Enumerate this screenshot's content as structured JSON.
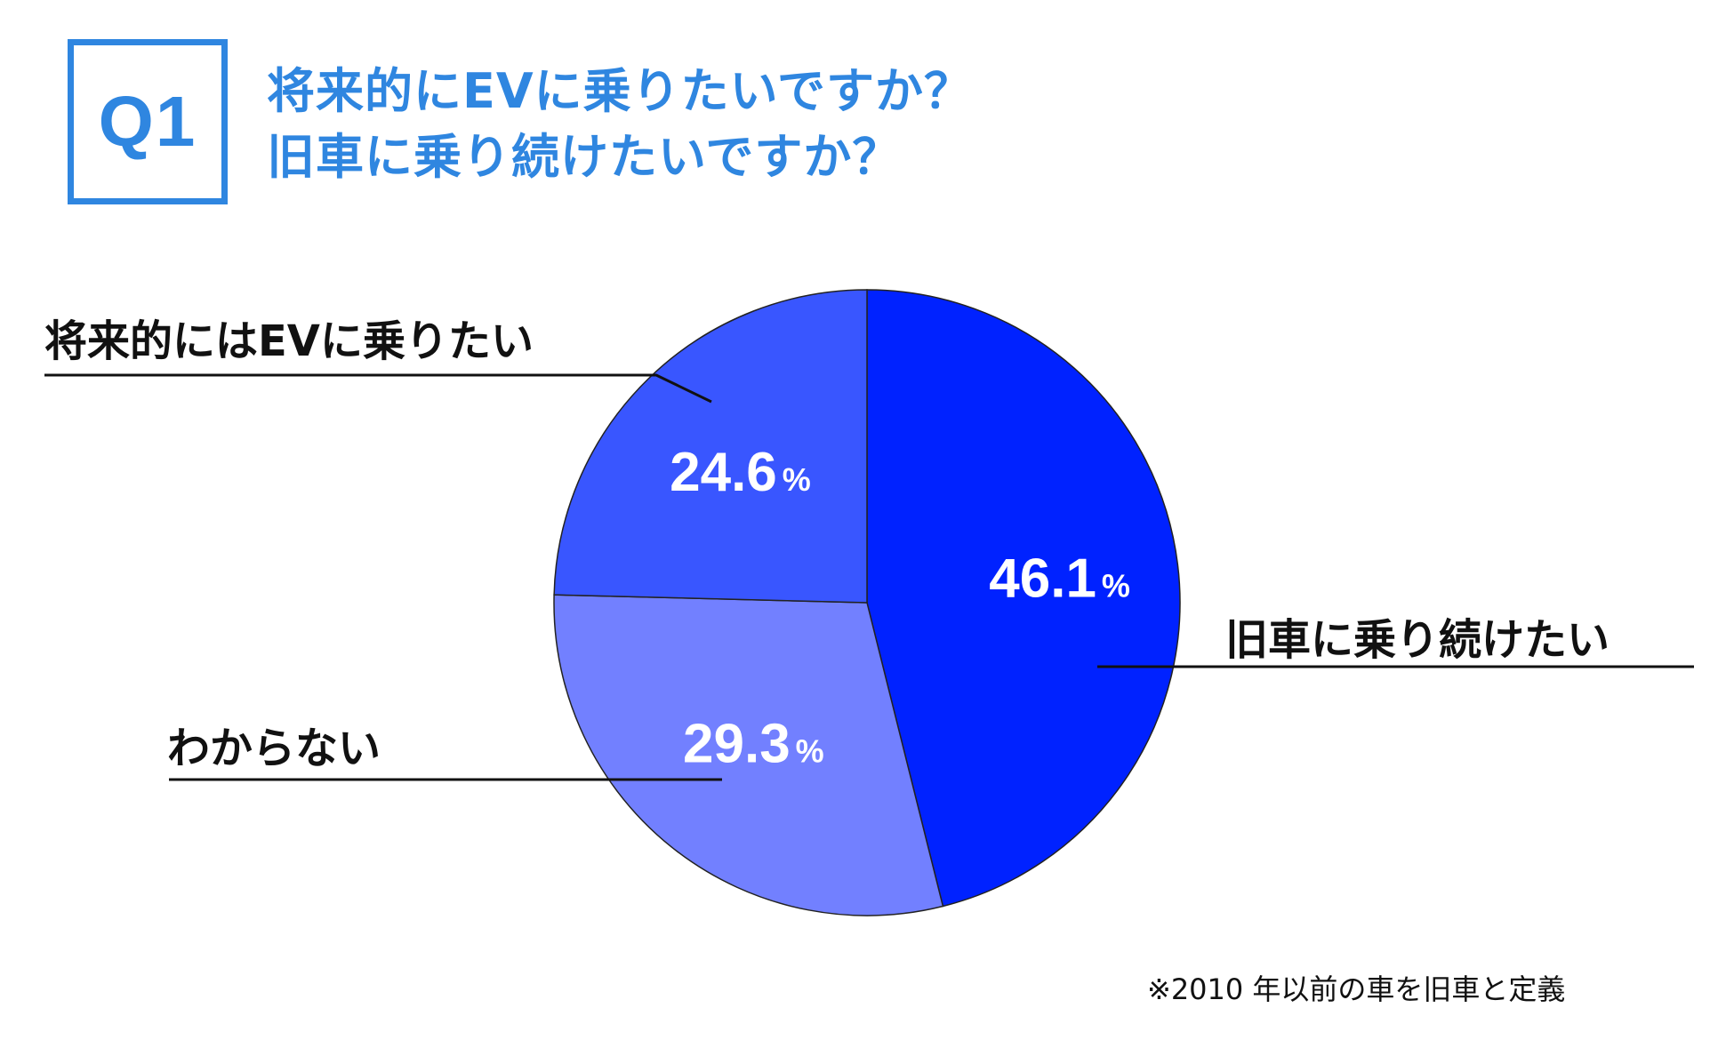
{
  "question": {
    "badge": "Q1",
    "title_line1": "将来的にEVに乗りたいですか？",
    "title_line2": "旧車に乗り続けたいですか？"
  },
  "chart_data": {
    "type": "pie",
    "start_angle": "12 o'clock, clockwise",
    "slices": [
      {
        "label": "旧車に乗り続けたい",
        "value": 46.1,
        "value_text": "46.1",
        "unit": "%",
        "color": "#0022ff"
      },
      {
        "label": "わからない",
        "value": 29.3,
        "value_text": "29.3",
        "unit": "%",
        "color": "#7280ff"
      },
      {
        "label": "将来的にはEVに乗りたい",
        "value": 24.6,
        "value_text": "24.6",
        "unit": "%",
        "color": "#3956ff"
      }
    ]
  },
  "footnote": "※2010 年以前の車を旧車と定義",
  "colors": {
    "accent": "#2f86e0",
    "text": "#111111",
    "edge": "#222222"
  }
}
